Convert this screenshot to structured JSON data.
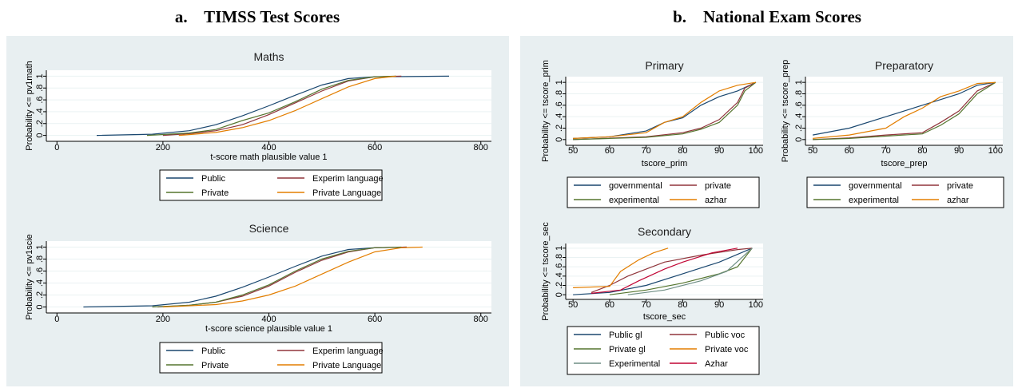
{
  "headings": [
    "a.    TIMSS Test Scores",
    "b.    National Exam Scores"
  ],
  "chart_data": [
    {
      "type": "line",
      "title": "Maths",
      "xlabel": "t-score math plausible value 1",
      "ylabel": "Probability <= pv1math",
      "xlim": [
        -20,
        820
      ],
      "ylim": [
        -0.1,
        1.1
      ],
      "xticks": [
        0,
        200,
        400,
        600,
        800
      ],
      "yticks": [
        0,
        {
          "value": 0.2,
          "label": ".2"
        },
        {
          "value": 0.4,
          "label": ".4"
        },
        {
          "value": 0.6,
          "label": ".6"
        },
        {
          "value": 0.8,
          "label": ".8"
        },
        1
      ],
      "grid": true,
      "series": [
        {
          "name": "Public",
          "color": "#1a476f",
          "x": [
            75,
            180,
            250,
            300,
            350,
            400,
            450,
            500,
            550,
            600,
            740
          ],
          "values": [
            0,
            0.02,
            0.08,
            0.18,
            0.33,
            0.5,
            0.68,
            0.85,
            0.96,
            0.99,
            1
          ]
        },
        {
          "name": "Experim language",
          "color": "#90353b",
          "x": [
            200,
            250,
            300,
            350,
            400,
            450,
            500,
            550,
            600,
            650
          ],
          "values": [
            0,
            0.03,
            0.08,
            0.18,
            0.35,
            0.55,
            0.75,
            0.92,
            0.99,
            1
          ]
        },
        {
          "name": "Private",
          "color": "#55752f",
          "x": [
            170,
            250,
            300,
            350,
            400,
            450,
            500,
            550,
            600,
            640
          ],
          "values": [
            0,
            0.04,
            0.1,
            0.25,
            0.38,
            0.57,
            0.78,
            0.93,
            0.99,
            1
          ]
        },
        {
          "name": "Private Language",
          "color": "#e37e00",
          "x": [
            230,
            300,
            350,
            400,
            450,
            500,
            550,
            600,
            640
          ],
          "values": [
            0,
            0.05,
            0.13,
            0.25,
            0.42,
            0.62,
            0.82,
            0.96,
            1
          ]
        }
      ]
    },
    {
      "type": "line",
      "title": "Science",
      "xlabel": "t-score science plausible value 1",
      "ylabel": "Probability <= pv1scie",
      "xlim": [
        -20,
        820
      ],
      "ylim": [
        -0.1,
        1.1
      ],
      "xticks": [
        0,
        200,
        400,
        600,
        800
      ],
      "yticks": [
        0,
        {
          "value": 0.2,
          "label": ".2"
        },
        {
          "value": 0.4,
          "label": ".4"
        },
        {
          "value": 0.6,
          "label": ".6"
        },
        {
          "value": 0.8,
          "label": ".8"
        },
        1
      ],
      "grid": true,
      "series": [
        {
          "name": "Public",
          "color": "#1a476f",
          "x": [
            50,
            180,
            250,
            300,
            350,
            400,
            450,
            500,
            550,
            600,
            660
          ],
          "values": [
            0,
            0.02,
            0.08,
            0.18,
            0.33,
            0.5,
            0.68,
            0.85,
            0.96,
            0.99,
            1
          ]
        },
        {
          "name": "Experim language",
          "color": "#90353b",
          "x": [
            190,
            250,
            300,
            350,
            400,
            450,
            500,
            550,
            600,
            660
          ],
          "values": [
            0,
            0.03,
            0.08,
            0.18,
            0.35,
            0.58,
            0.78,
            0.92,
            0.99,
            1
          ]
        },
        {
          "name": "Private",
          "color": "#55752f",
          "x": [
            180,
            250,
            300,
            350,
            400,
            450,
            500,
            550,
            600,
            650
          ],
          "values": [
            0,
            0.03,
            0.08,
            0.2,
            0.37,
            0.6,
            0.8,
            0.93,
            0.99,
            1
          ]
        },
        {
          "name": "Private Language",
          "color": "#e37e00",
          "x": [
            200,
            300,
            350,
            400,
            450,
            500,
            550,
            600,
            650,
            690
          ],
          "values": [
            0,
            0.04,
            0.1,
            0.2,
            0.35,
            0.55,
            0.75,
            0.92,
            0.99,
            1
          ]
        }
      ]
    },
    {
      "type": "line",
      "title": "Primary",
      "xlabel": "tscore_prim",
      "ylabel": "Probability <= tscore_prim",
      "xlim": [
        48,
        102
      ],
      "ylim": [
        -0.1,
        1.1
      ],
      "xticks": [
        50,
        60,
        70,
        80,
        90,
        100
      ],
      "yticks": [
        0,
        {
          "value": 0.2,
          "label": ".2"
        },
        {
          "value": 0.4,
          "label": ".4"
        },
        {
          "value": 0.6,
          "label": ".6"
        },
        {
          "value": 0.8,
          "label": ".8"
        },
        1
      ],
      "grid": true,
      "series": [
        {
          "name": "governmental",
          "color": "#1a476f",
          "x": [
            50,
            60,
            70,
            75,
            80,
            85,
            90,
            95,
            100
          ],
          "values": [
            0.02,
            0.05,
            0.15,
            0.3,
            0.38,
            0.6,
            0.75,
            0.85,
            1
          ]
        },
        {
          "name": "private",
          "color": "#90353b",
          "x": [
            50,
            70,
            80,
            85,
            90,
            95,
            97,
            100
          ],
          "values": [
            0,
            0.05,
            0.12,
            0.2,
            0.35,
            0.65,
            0.9,
            1
          ]
        },
        {
          "name": "experimental",
          "color": "#55752f",
          "x": [
            50,
            70,
            80,
            85,
            90,
            95,
            97,
            100
          ],
          "values": [
            0,
            0.04,
            0.1,
            0.18,
            0.3,
            0.6,
            0.85,
            1
          ]
        },
        {
          "name": "azhar",
          "color": "#e37e00",
          "x": [
            50,
            60,
            70,
            75,
            80,
            85,
            90,
            95,
            100
          ],
          "values": [
            0.02,
            0.05,
            0.12,
            0.3,
            0.4,
            0.65,
            0.85,
            0.95,
            1
          ]
        }
      ]
    },
    {
      "type": "line",
      "title": "Preparatory",
      "xlabel": "tscore_prep",
      "ylabel": "Probability <= tscore_prep",
      "xlim": [
        48,
        102
      ],
      "ylim": [
        -0.1,
        1.1
      ],
      "xticks": [
        50,
        60,
        70,
        80,
        90,
        100
      ],
      "yticks": [
        0,
        {
          "value": 0.2,
          "label": ".2"
        },
        {
          "value": 0.4,
          "label": ".4"
        },
        {
          "value": 0.6,
          "label": ".6"
        },
        {
          "value": 0.8,
          "label": ".8"
        },
        1
      ],
      "grid": true,
      "series": [
        {
          "name": "governmental",
          "color": "#1a476f",
          "x": [
            50,
            60,
            70,
            80,
            85,
            90,
            95,
            100
          ],
          "values": [
            0.08,
            0.2,
            0.4,
            0.6,
            0.7,
            0.8,
            0.95,
            1
          ]
        },
        {
          "name": "private",
          "color": "#90353b",
          "x": [
            50,
            60,
            70,
            80,
            85,
            90,
            95,
            100
          ],
          "values": [
            0,
            0.03,
            0.08,
            0.12,
            0.3,
            0.5,
            0.85,
            1
          ]
        },
        {
          "name": "experimental",
          "color": "#55752f",
          "x": [
            50,
            60,
            70,
            80,
            85,
            90,
            95,
            100
          ],
          "values": [
            0,
            0.02,
            0.06,
            0.1,
            0.25,
            0.45,
            0.8,
            1
          ]
        },
        {
          "name": "azhar",
          "color": "#e37e00",
          "x": [
            50,
            60,
            70,
            75,
            80,
            85,
            90,
            95,
            100
          ],
          "values": [
            0.02,
            0.08,
            0.2,
            0.4,
            0.55,
            0.75,
            0.85,
            0.98,
            1
          ]
        }
      ]
    },
    {
      "type": "line",
      "title": "Secondary",
      "xlabel": "tscore_sec",
      "ylabel": "Probability <= tscore_sec",
      "xlim": [
        48,
        102
      ],
      "ylim": [
        -0.1,
        1.1
      ],
      "xticks": [
        50,
        60,
        70,
        80,
        90,
        100
      ],
      "yticks": [
        0,
        {
          "value": 0.2,
          "label": ".2"
        },
        {
          "value": 0.4,
          "label": ".4"
        },
        {
          "value": 0.6,
          "label": ".6"
        },
        {
          "value": 0.8,
          "label": ".8"
        },
        1
      ],
      "grid": true,
      "series": [
        {
          "name": "Public gl",
          "color": "#1a476f",
          "x": [
            50,
            60,
            70,
            80,
            90,
            99
          ],
          "values": [
            0,
            0.05,
            0.2,
            0.45,
            0.7,
            1
          ]
        },
        {
          "name": "Public voc",
          "color": "#90353b",
          "x": [
            55,
            60,
            65,
            70,
            75,
            85,
            95,
            99
          ],
          "values": [
            0.05,
            0.2,
            0.4,
            0.55,
            0.7,
            0.85,
            0.97,
            1
          ]
        },
        {
          "name": "Private gl",
          "color": "#55752f",
          "x": [
            60,
            70,
            80,
            90,
            95,
            99
          ],
          "values": [
            0,
            0.1,
            0.25,
            0.45,
            0.6,
            1
          ]
        },
        {
          "name": "Private voc",
          "color": "#e37e00",
          "x": [
            50,
            60,
            63,
            68,
            72,
            76
          ],
          "values": [
            0.15,
            0.18,
            0.5,
            0.75,
            0.9,
            1
          ]
        },
        {
          "name": "Experimental",
          "color": "#6e8e84",
          "x": [
            65,
            75,
            85,
            92,
            99
          ],
          "values": [
            0,
            0.1,
            0.3,
            0.5,
            1
          ]
        },
        {
          "name": "Azhar",
          "color": "#c10534",
          "x": [
            55,
            63,
            68,
            75,
            80,
            88,
            95
          ],
          "values": [
            0.03,
            0.1,
            0.3,
            0.55,
            0.7,
            0.9,
            1
          ]
        }
      ]
    }
  ]
}
